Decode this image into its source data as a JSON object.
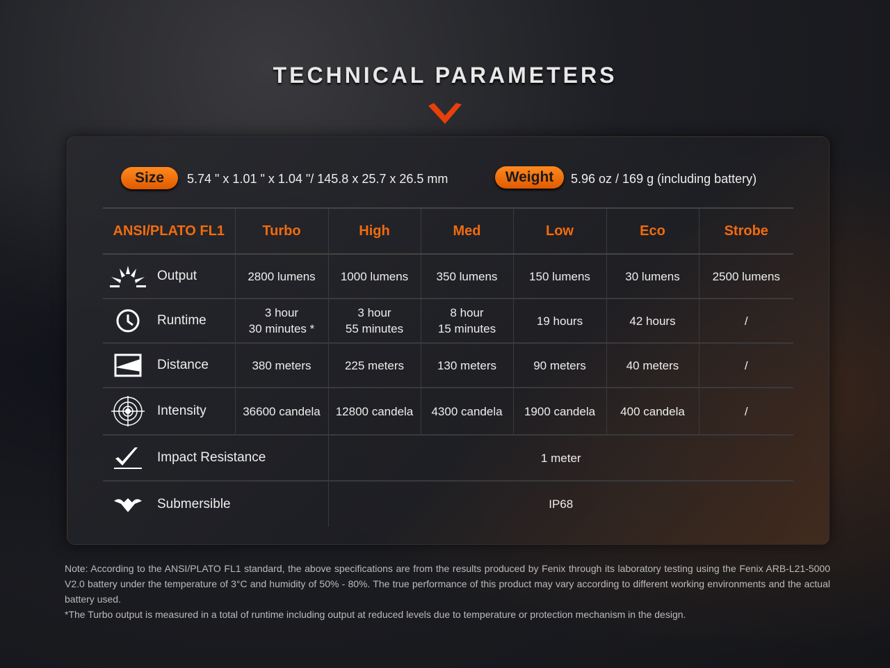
{
  "title": "TECHNICAL PARAMETERS",
  "accent": "#f26b0f",
  "size": {
    "label": "Size",
    "value": "5.74 \" x 1.01 \" x 1.04 \"/ 145.8 x 25.7 x 26.5 mm"
  },
  "weight": {
    "label": "Weight",
    "value": "5.96 oz / 169 g (including battery)"
  },
  "table": {
    "headers": [
      "ANSI/PLATO FL1",
      "Turbo",
      "High",
      "Med",
      "Low",
      "Eco",
      "Strobe"
    ],
    "rows": [
      {
        "icon": "output-icon",
        "label": "Output",
        "cells": [
          "2800 lumens",
          "1000 lumens",
          "350 lumens",
          "150 lumens",
          "30 lumens",
          "2500 lumens"
        ]
      },
      {
        "icon": "clock-icon",
        "label": "Runtime",
        "cells": [
          "3 hour\n30 minutes *",
          "3 hour\n55 minutes",
          "8 hour\n15 minutes",
          "19 hours",
          "42 hours",
          "/"
        ]
      },
      {
        "icon": "distance-icon",
        "label": "Distance",
        "cells": [
          "380 meters",
          "225 meters",
          "130 meters",
          "90 meters",
          "40 meters",
          "/"
        ]
      },
      {
        "icon": "intensity-icon",
        "label": "Intensity",
        "cells": [
          "36600 candela",
          "12800 candela",
          "4300 candela",
          "1900 candela",
          "400 candela",
          "/"
        ]
      }
    ],
    "impact": {
      "icon": "impact-icon",
      "label": "Impact Resistance",
      "value": "1 meter"
    },
    "submersible": {
      "icon": "submersible-icon",
      "label": "Submersible",
      "value": "IP68"
    }
  },
  "notes": [
    "Note: According to the ANSI/PLATO FL1 standard, the above specifications are from the results produced by Fenix through its laboratory testing using the Fenix ARB-L21-5000 V2.0 battery under the temperature of 3°C and humidity of 50% - 80%. The true performance of this product may vary according to different working environments and the actual battery used.",
    "*The Turbo output is measured in a total of runtime including output at reduced levels due to temperature or protection mechanism in the design."
  ]
}
